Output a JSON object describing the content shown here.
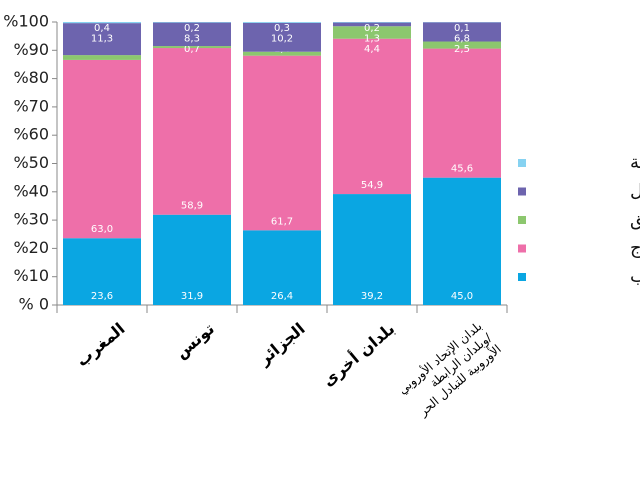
{
  "chart_data": {
    "type": "stacked-bar",
    "categories": [
      "المغرب",
      "تونس",
      "الجزائر",
      "بلدان أخرى",
      "بلدان الإتحاد الأوروبي\n/وبلدان الرابطة\nالأوروبية للتبادل الحر"
    ],
    "series": [
      {
        "name": "أعزب",
        "color": "#0aa6e2",
        "values": [
          23.6,
          31.9,
          26.4,
          39.2,
          45.0
        ],
        "value_labels": [
          "23,6",
          "31,9",
          "26,4",
          "39,2",
          "45,0"
        ]
      },
      {
        "name": "متزوّج",
        "color": "#ee6fa9",
        "values": [
          63.0,
          58.9,
          61.7,
          54.9,
          45.6
        ],
        "value_labels": [
          "63,0",
          "58,9",
          "61,7",
          "54,9",
          "45,6"
        ]
      },
      {
        "name": "مطلق",
        "color": "#8cc76e",
        "values": [
          1.7,
          0.7,
          1.4,
          4.4,
          2.5
        ],
        "value_labels": [
          "1,7",
          "0,7",
          "1,4",
          "4,4",
          "2,5"
        ]
      },
      {
        "name": "أرمل",
        "color": "#6d64ae",
        "values": [
          11.3,
          8.3,
          10.2,
          1.3,
          6.8
        ],
        "value_labels": [
          "11,3",
          "8,3",
          "10,2",
          "1,3",
          "6,8"
        ]
      },
      {
        "name": "شراكة مدنية",
        "color": "#86d2f1",
        "values": [
          0.4,
          0.2,
          0.3,
          0.2,
          0.1
        ],
        "value_labels": [
          "0,4",
          "0,2",
          "0,3",
          "0,2",
          "0,1"
        ]
      }
    ],
    "ylim": [
      0,
      100
    ],
    "yticks": [
      {
        "value": 0,
        "label": "% 0"
      },
      {
        "value": 10,
        "label": "%10"
      },
      {
        "value": 20,
        "label": "%20"
      },
      {
        "value": 30,
        "label": "%30"
      },
      {
        "value": 40,
        "label": "%40"
      },
      {
        "value": 50,
        "label": "%50"
      },
      {
        "value": 60,
        "label": "%60"
      },
      {
        "value": 70,
        "label": "%70"
      },
      {
        "value": 80,
        "label": "%80"
      },
      {
        "value": 90,
        "label": "%90"
      },
      {
        "value": 100,
        "label": "%100"
      }
    ],
    "legend": "right"
  }
}
